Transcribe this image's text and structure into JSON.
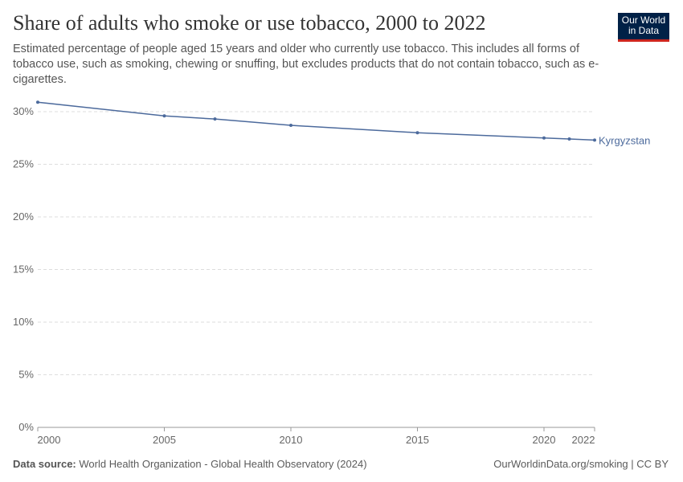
{
  "title": "Share of adults who smoke or use tobacco, 2000 to 2022",
  "subtitle": "Estimated percentage of people aged 15 years and older who currently use tobacco. This includes all forms of tobacco use, such as smoking, chewing or snuffing, but excludes products that do not contain tobacco, such as e-cigarettes.",
  "logo": {
    "line1": "Our World",
    "line2": "in Data"
  },
  "footer": {
    "source_label": "Data source:",
    "source": "World Health Organization - Global Health Observatory (2024)",
    "credit": "OurWorldinData.org/smoking | CC BY"
  },
  "chart_data": {
    "type": "line",
    "title": "Share of adults who smoke or use tobacco, 2000 to 2022",
    "xlim": [
      2000,
      2022
    ],
    "ylim": [
      0,
      30
    ],
    "x_ticks": [
      "2000",
      "2005",
      "2010",
      "2015",
      "2020",
      "2022"
    ],
    "y_ticks": [
      "0%",
      "5%",
      "10%",
      "15%",
      "20%",
      "25%",
      "30%"
    ],
    "grid": "horizontal dashed",
    "series": [
      {
        "name": "Kyrgyzstan",
        "color": "#4c6a9c",
        "x": [
          2000,
          2005,
          2007,
          2010,
          2015,
          2020,
          2021,
          2022
        ],
        "values": [
          30.9,
          29.6,
          29.3,
          28.7,
          28.0,
          27.5,
          27.4,
          27.3
        ]
      }
    ]
  }
}
